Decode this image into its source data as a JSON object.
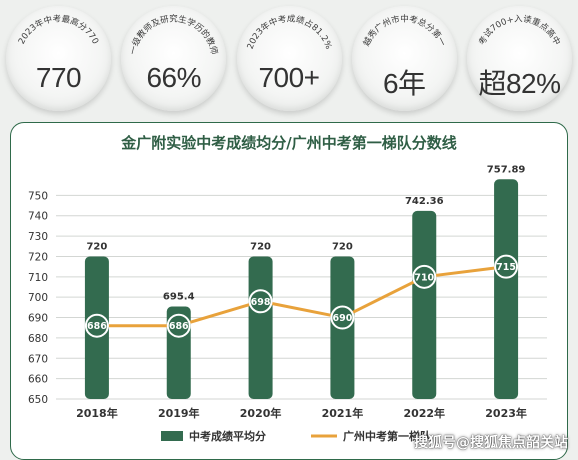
{
  "stats": [
    {
      "caption": "2023年中考最高分770",
      "value": "770"
    },
    {
      "caption": "一级教师及研究生学历的教师",
      "value": "66%"
    },
    {
      "caption": "2023年中考成绩占81.2%",
      "value": "700+"
    },
    {
      "caption": "越秀广州市中考总分第一",
      "value": "6年"
    },
    {
      "caption": "考试700+入读重点高中",
      "value": "超82%"
    }
  ],
  "chart_data": {
    "type": "bar",
    "title": "金广附实验中考成绩均分/广州中考第一梯队分数线",
    "categories": [
      "2018年",
      "2019年",
      "2020年",
      "2021年",
      "2022年",
      "2023年"
    ],
    "series": [
      {
        "name": "中考成绩平均分",
        "kind": "bar",
        "color": "#336b4f",
        "values": [
          720,
          695.4,
          720,
          720,
          742.36,
          757.89
        ],
        "labels": [
          "720",
          "695.4",
          "720",
          "720",
          "742.36",
          "757.89"
        ]
      },
      {
        "name": "广州中考第一梯队",
        "kind": "line",
        "color": "#e8a23b",
        "values": [
          686,
          686,
          698,
          690,
          710,
          715
        ],
        "labels": [
          "686",
          "686",
          "698",
          "690",
          "710",
          "715"
        ]
      }
    ],
    "ylim": [
      650,
      760
    ],
    "yticks": [
      650,
      660,
      670,
      680,
      690,
      700,
      710,
      720,
      730,
      740,
      750
    ],
    "grid": true,
    "legend": "bottom"
  },
  "watermark": "搜狐号@搜狐焦点韶关站"
}
